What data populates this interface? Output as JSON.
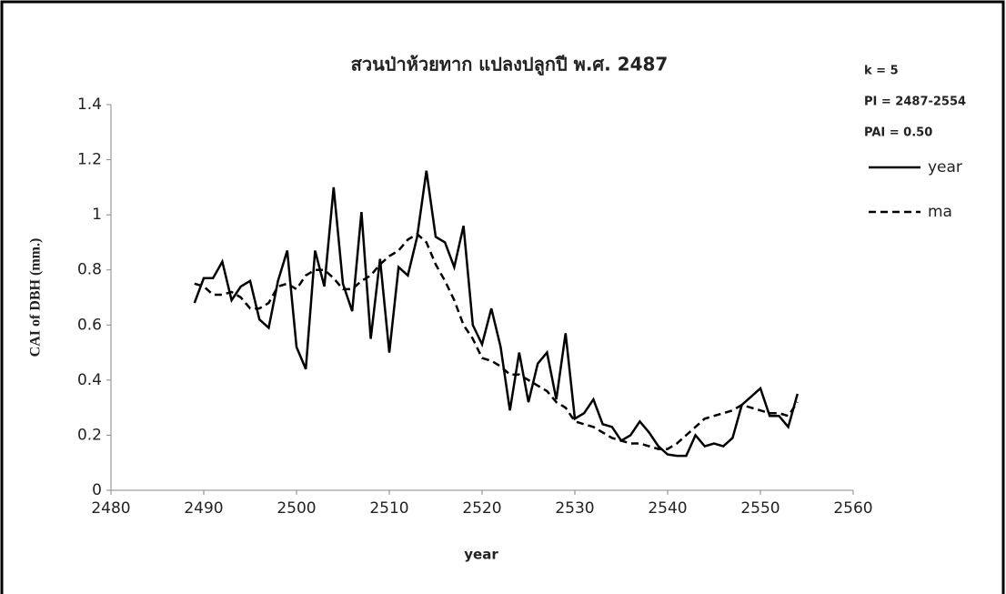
{
  "chart_data": {
    "type": "line",
    "title": "สวนป่าห้วยทาก แปลงปลูกปี พ.ศ. 2487",
    "annotations": [
      "k = 5",
      "PI = 2487-2554",
      "PAI = 0.50"
    ],
    "xlabel": "year",
    "ylabel": "CAI of DBH (mm.)",
    "x": [
      2489,
      2490,
      2491,
      2492,
      2493,
      2494,
      2495,
      2496,
      2497,
      2498,
      2499,
      2500,
      2501,
      2502,
      2503,
      2504,
      2505,
      2506,
      2507,
      2508,
      2509,
      2510,
      2511,
      2512,
      2513,
      2514,
      2515,
      2516,
      2517,
      2518,
      2519,
      2520,
      2521,
      2522,
      2523,
      2524,
      2525,
      2526,
      2527,
      2528,
      2529,
      2530,
      2531,
      2532,
      2533,
      2534,
      2535,
      2536,
      2537,
      2538,
      2539,
      2540,
      2541,
      2542,
      2543,
      2544,
      2545,
      2546,
      2547,
      2548,
      2549,
      2550,
      2551,
      2552,
      2553,
      2554
    ],
    "series": [
      {
        "name": "year",
        "color": "#000000",
        "linestyle": "solid",
        "values": [
          0.68,
          0.77,
          0.77,
          0.83,
          0.69,
          0.74,
          0.76,
          0.62,
          0.59,
          0.76,
          0.87,
          0.52,
          0.44,
          0.87,
          0.74,
          1.1,
          0.75,
          0.65,
          1.01,
          0.55,
          0.84,
          0.5,
          0.81,
          0.78,
          0.92,
          1.16,
          0.92,
          0.9,
          0.81,
          0.96,
          0.6,
          0.53,
          0.66,
          0.52,
          0.29,
          0.5,
          0.32,
          0.46,
          0.5,
          0.33,
          0.57,
          0.26,
          0.28,
          0.33,
          0.24,
          0.23,
          0.18,
          0.2,
          0.25,
          0.21,
          0.16,
          0.13,
          0.125,
          0.125,
          0.2,
          0.16,
          0.17,
          0.16,
          0.19,
          0.31,
          0.34,
          0.37,
          0.27,
          0.27,
          0.23,
          0.35
        ]
      },
      {
        "name": "ma",
        "color": "#000000",
        "linestyle": "dashed",
        "values": [
          0.75,
          0.74,
          0.71,
          0.71,
          0.72,
          0.7,
          0.66,
          0.66,
          0.68,
          0.74,
          0.75,
          0.73,
          0.78,
          0.8,
          0.8,
          0.77,
          0.73,
          0.73,
          0.76,
          0.78,
          0.82,
          0.85,
          0.87,
          0.91,
          0.93,
          0.9,
          0.82,
          0.76,
          0.69,
          0.6,
          0.55,
          0.48,
          0.47,
          0.45,
          0.42,
          0.42,
          0.4,
          0.38,
          0.36,
          0.32,
          0.3,
          0.25,
          0.24,
          0.23,
          0.21,
          0.19,
          0.18,
          0.17,
          0.17,
          0.16,
          0.15,
          0.15,
          0.17,
          0.2,
          0.23,
          0.26,
          0.27,
          0.28,
          0.29,
          0.31,
          0.3,
          0.29,
          0.28,
          0.28,
          0.27,
          0.32
        ]
      }
    ],
    "xlim": [
      2480,
      2560
    ],
    "xticks": [
      2480,
      2490,
      2500,
      2510,
      2520,
      2530,
      2540,
      2550,
      2560
    ],
    "ylim": [
      0,
      1.4
    ],
    "yticks": [
      0,
      0.2,
      0.4,
      0.6,
      0.8,
      1,
      1.2,
      1.4
    ],
    "grid": false,
    "legend": "right"
  }
}
